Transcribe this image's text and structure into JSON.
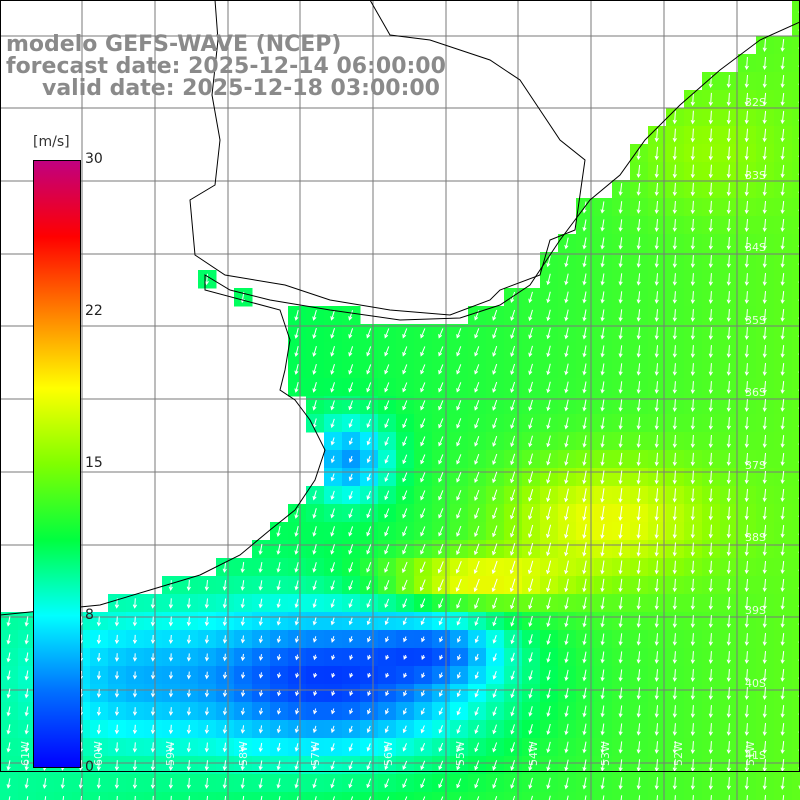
{
  "title": {
    "line1": "modelo GEFS-WAVE (NCEP)",
    "line2": "forecast date: 2025-12-14 06:00:00",
    "line3": "valid date: 2025-12-18 03:00:00"
  },
  "colorbar": {
    "unit": "[m/s]",
    "ticks": [
      {
        "label": "30",
        "value": 30
      },
      {
        "label": "22",
        "value": 22
      },
      {
        "label": "15",
        "value": 15
      },
      {
        "label": "8",
        "value": 8
      },
      {
        "label": "0",
        "value": 0
      }
    ],
    "colors": [
      "#0000ff",
      "#0070ff",
      "#00ffff",
      "#00ff40",
      "#80ff00",
      "#ffff00",
      "#ff8000",
      "#ff0000",
      "#c00080"
    ]
  },
  "lat_labels": [
    "32S",
    "33S",
    "34S",
    "35S",
    "36S",
    "37S",
    "38S",
    "39S",
    "40S",
    "41S"
  ],
  "lon_labels": [
    "61W",
    "60W",
    "59W",
    "58W",
    "57W",
    "56W",
    "55W",
    "54W",
    "53W",
    "52W",
    "51W"
  ],
  "land_color": "#ffffff",
  "grid_color": "#7a7a7a"
}
